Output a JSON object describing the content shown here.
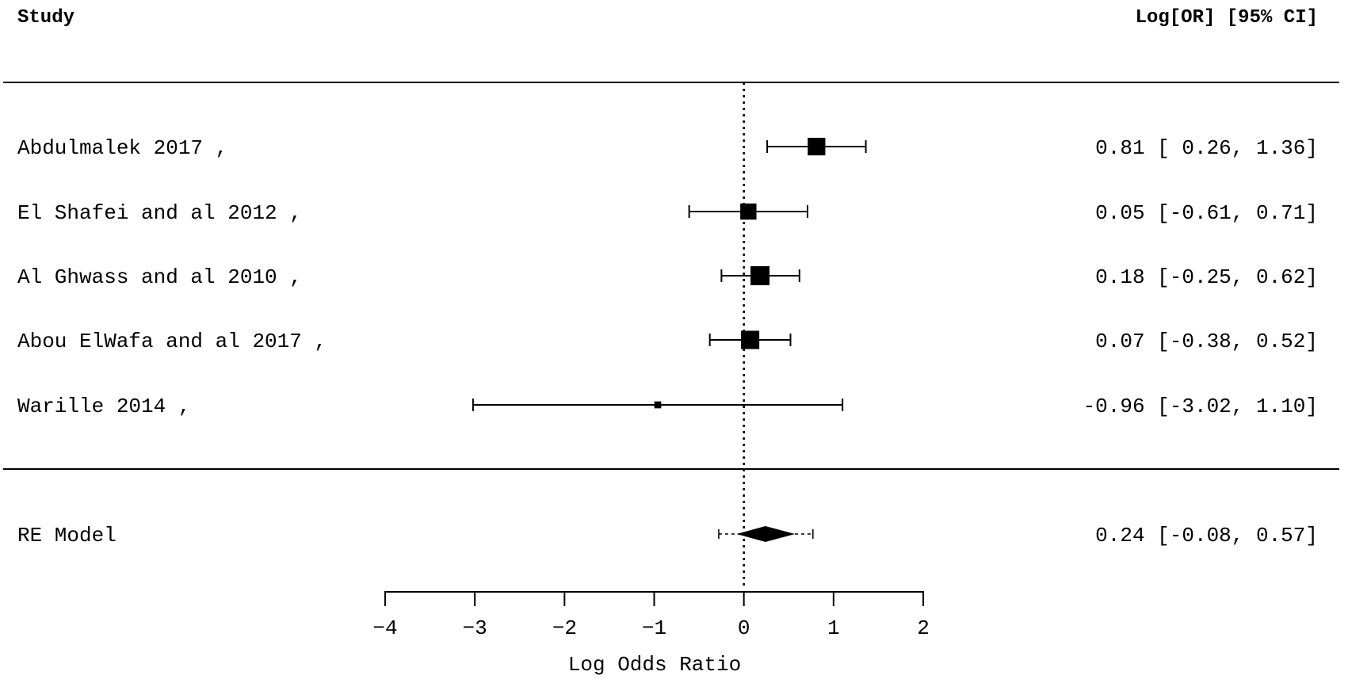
{
  "header": {
    "study_label": "Study",
    "ci_label": "Log[OR] [95% CI]"
  },
  "chart_data": {
    "type": "forest",
    "xlabel": "Log Odds Ratio",
    "xlim": [
      -4,
      2
    ],
    "xticks": [
      -4,
      -3,
      -2,
      -1,
      0,
      1,
      2
    ],
    "xtick_labels": [
      "−4",
      "−3",
      "−2",
      "−1",
      "0",
      "1",
      "2"
    ],
    "reference_line": 0,
    "studies": [
      {
        "name": "Abdulmalek 2017 ,",
        "estimate": 0.81,
        "lower": 0.26,
        "upper": 1.36,
        "weight": 0.9,
        "label": "0.81 [ 0.26, 1.36]"
      },
      {
        "name": "El Shafei and al 2012 ,",
        "estimate": 0.05,
        "lower": -0.61,
        "upper": 0.71,
        "weight": 0.8,
        "label": "0.05 [-0.61, 0.71]"
      },
      {
        "name": "Al Ghwass and al 2010 ,",
        "estimate": 0.18,
        "lower": -0.25,
        "upper": 0.62,
        "weight": 1.0,
        "label": "0.18 [-0.25, 0.62]"
      },
      {
        "name": "Abou ElWafa and al 2017 ,",
        "estimate": 0.07,
        "lower": -0.38,
        "upper": 0.52,
        "weight": 0.95,
        "label": "0.07 [-0.38, 0.52]"
      },
      {
        "name": "Warille 2014 ,",
        "estimate": -0.96,
        "lower": -3.02,
        "upper": 1.1,
        "weight": 0.15,
        "label": "-0.96 [-3.02, 1.10]"
      }
    ],
    "summary": {
      "name": "RE Model",
      "estimate": 0.24,
      "lower": -0.08,
      "upper": 0.57,
      "pi_lower": -0.28,
      "pi_upper": 0.77,
      "label": "0.24 [-0.08, 0.57]"
    }
  }
}
